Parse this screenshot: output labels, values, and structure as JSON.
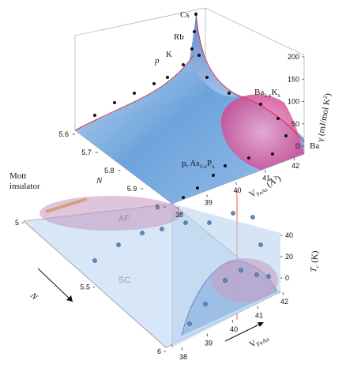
{
  "figure": {
    "labels": {
      "cs": "Cs",
      "rb": "Rb",
      "k": "K",
      "p_top": "p",
      "ba_k": [
        "Ba",
        "1-x",
        "K",
        "x"
      ],
      "ba": "Ba",
      "p_as": [
        "p, As",
        "1-x",
        "P",
        "x"
      ],
      "mott": [
        "Mott",
        "insulator"
      ],
      "af": "AF",
      "sc": "SC"
    },
    "axes": {
      "gamma": {
        "label": "γ (mJ/mol K",
        "label_sup": "2",
        "label_end": ")",
        "ticks": [
          0,
          50,
          100,
          150,
          200
        ]
      },
      "n_top": {
        "label": "N",
        "ticks": [
          5.6,
          5.7,
          5.8,
          5.9,
          6.0
        ]
      },
      "v_top": {
        "label": "V",
        "label_sub": "FeAs",
        "label_end": " (Å",
        "label_sup": "3",
        "label_close": ")",
        "ticks": [
          38,
          39,
          40,
          41,
          42
        ]
      },
      "tc": {
        "label": "T",
        "label_sub": "c",
        "label_end": " (K)",
        "ticks": [
          0,
          20,
          40
        ]
      },
      "n_bottom": {
        "label": "N",
        "ticks": [
          5.0,
          5.5,
          6.0
        ]
      },
      "v_bottom": {
        "label": "V",
        "label_sub": "FeAs",
        "ticks": [
          38,
          39,
          40,
          41,
          42
        ]
      }
    }
  }
}
